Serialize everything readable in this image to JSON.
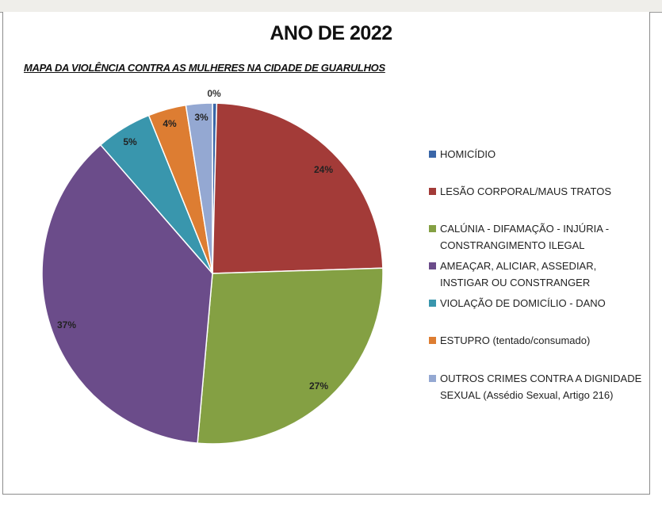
{
  "chart_data": {
    "type": "pie",
    "title": "ANO DE 2022",
    "subtitle": "MAPA DA VIOLÊNCIA CONTRA AS MULHERES NA CIDADE DE GUARULHOS",
    "legend_position": "right",
    "categories": [
      "HOMICÍDIO",
      "LESÃO CORPORAL/MAUS TRATOS",
      "CALÚNIA - DIFAMAÇÃO - INJÚRIA -\nCONSTRANGIMENTO ILEGAL",
      "AMEAÇAR, ALICIAR, ASSEDIAR,\nINSTIGAR OU CONSTRANGER",
      "VIOLAÇÃO DE DOMICÍLIO - DANO",
      "ESTUPRO (tentado/consumado)",
      "OUTROS CRIMES CONTRA A DIGNIDADE\nSEXUAL (Assédio Sexual, Artigo 216)"
    ],
    "values": [
      0.4,
      24.1,
      26.9,
      37.2,
      5.3,
      3.6,
      2.5
    ],
    "data_labels": [
      "0%",
      "24%",
      "27%",
      "37%",
      "5%",
      "4%",
      "3%"
    ],
    "colors": [
      "#3a66a8",
      "#a33b38",
      "#84a043",
      "#6b4c8a",
      "#3996ad",
      "#dd7d32",
      "#94a8d2"
    ]
  }
}
